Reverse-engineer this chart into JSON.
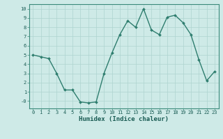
{
  "x": [
    0,
    1,
    2,
    3,
    4,
    5,
    6,
    7,
    8,
    9,
    10,
    11,
    12,
    13,
    14,
    15,
    16,
    17,
    18,
    19,
    20,
    21,
    22,
    23
  ],
  "y": [
    5.0,
    4.8,
    4.6,
    3.0,
    1.2,
    1.2,
    -0.1,
    -0.2,
    -0.1,
    3.0,
    5.2,
    7.2,
    8.7,
    8.0,
    10.0,
    7.7,
    7.2,
    9.1,
    9.3,
    8.5,
    7.2,
    4.5,
    2.2,
    3.2
  ],
  "line_color": "#2e7d6e",
  "marker": "D",
  "marker_size": 2,
  "linewidth": 1.0,
  "bg_color": "#ceeae7",
  "grid_color": "#aed4d0",
  "tick_color": "#1a5c54",
  "xlabel": "Humidex (Indice chaleur)",
  "xlabel_fontsize": 6.5,
  "xlim": [
    -0.5,
    23.5
  ],
  "ylim": [
    -0.8,
    10.5
  ],
  "xticks": [
    0,
    1,
    2,
    3,
    4,
    5,
    6,
    7,
    8,
    9,
    10,
    11,
    12,
    13,
    14,
    15,
    16,
    17,
    18,
    19,
    20,
    21,
    22,
    23
  ],
  "xtick_labels": [
    "0",
    "1",
    "2",
    "3",
    "4",
    "5",
    "6",
    "7",
    "8",
    "9",
    "10",
    "11",
    "12",
    "13",
    "14",
    "15",
    "16",
    "17",
    "18",
    "19",
    "20",
    "21",
    "22",
    "23"
  ],
  "yticks_vals": [
    0,
    1,
    2,
    3,
    4,
    5,
    6,
    7,
    8,
    9,
    10
  ],
  "ytick_labels": [
    "-0",
    "1",
    "2",
    "3",
    "4",
    "5",
    "6",
    "7",
    "8",
    "9",
    "10"
  ],
  "spine_color": "#3a8a7a",
  "tick_fontsize": 5,
  "label_fontweight": "bold"
}
